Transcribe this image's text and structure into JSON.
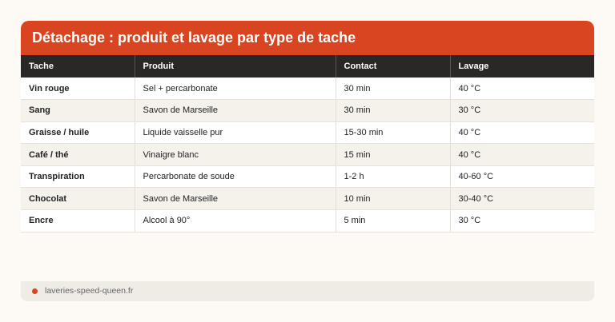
{
  "title": "Détachage : produit et lavage par type de tache",
  "columns": [
    "Tache",
    "Produit",
    "Contact",
    "Lavage"
  ],
  "rows": [
    [
      "Vin rouge",
      "Sel + percarbonate",
      "30 min",
      "40 °C"
    ],
    [
      "Sang",
      "Savon de Marseille",
      "30 min",
      "30 °C"
    ],
    [
      "Graisse / huile",
      "Liquide vaisselle pur",
      "15-30 min",
      "40 °C"
    ],
    [
      "Café / thé",
      "Vinaigre blanc",
      "15 min",
      "40 °C"
    ],
    [
      "Transpiration",
      "Percarbonate de soude",
      "1-2 h",
      "40-60 °C"
    ],
    [
      "Chocolat",
      "Savon de Marseille",
      "10 min",
      "30-40 °C"
    ],
    [
      "Encre",
      "Alcool à 90°",
      "5 min",
      "30 °C"
    ]
  ],
  "footer": {
    "source": "laveries-speed-queen.fr"
  },
  "colors": {
    "accent": "#d94520",
    "header": "#2a2826"
  }
}
